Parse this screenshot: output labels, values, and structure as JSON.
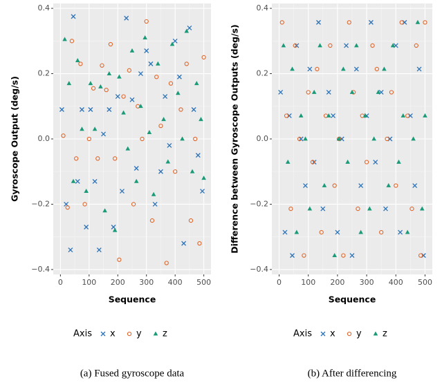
{
  "chart_data": [
    {
      "type": "scatter",
      "caption": "(a) Fused gyroscope data",
      "xlabel": "Sequence",
      "ylabel": "Gyroscope Output (deg/s)",
      "legend_title": "Axis",
      "legend": "bottom",
      "grid": true,
      "xlim": [
        -25,
        525
      ],
      "ylim": [
        -0.415,
        0.415
      ],
      "xticks": [
        0,
        100,
        200,
        300,
        400,
        500
      ],
      "yticks": [
        {
          "value": -0.4,
          "label": "−0.4"
        },
        {
          "value": -0.2,
          "label": "−0.2"
        },
        {
          "value": 0,
          "label": "0.0"
        },
        0.2,
        0.4
      ],
      "series": [
        {
          "name": "x",
          "color": "#2a72b8",
          "marker": "cross",
          "x": [
            5,
            20,
            35,
            45,
            60,
            75,
            90,
            105,
            120,
            135,
            150,
            170,
            185,
            200,
            215,
            230,
            250,
            265,
            280,
            300,
            315,
            330,
            350,
            365,
            380,
            400,
            415,
            430,
            450,
            465,
            480,
            495
          ],
          "values": [
            0.09,
            -0.2,
            -0.34,
            0.375,
            -0.13,
            0.09,
            -0.27,
            0.09,
            -0.13,
            -0.34,
            0.015,
            0.09,
            -0.27,
            0.13,
            -0.16,
            0.37,
            0.12,
            -0.09,
            0.2,
            0.27,
            0.23,
            -0.2,
            -0.1,
            0.13,
            -0.02,
            0.3,
            0.19,
            -0.32,
            0.34,
            0.09,
            -0.05,
            -0.16
          ]
        },
        {
          "name": "y",
          "color": "#e0662a",
          "marker": "circle",
          "x": [
            10,
            25,
            40,
            55,
            70,
            85,
            100,
            115,
            130,
            145,
            160,
            175,
            190,
            205,
            220,
            240,
            255,
            270,
            285,
            300,
            320,
            335,
            350,
            370,
            385,
            400,
            420,
            440,
            455,
            470,
            485,
            500
          ],
          "values": [
            0.01,
            -0.21,
            0.3,
            -0.06,
            0.23,
            -0.2,
            0.0,
            0.155,
            -0.06,
            0.225,
            0.15,
            0.29,
            -0.06,
            -0.37,
            0.13,
            0.21,
            -0.2,
            0.1,
            0.0,
            0.36,
            -0.25,
            0.19,
            0.04,
            -0.38,
            0.17,
            -0.1,
            0.09,
            0.23,
            -0.25,
            0.0,
            -0.32,
            0.25
          ]
        },
        {
          "name": "z",
          "color": "#1b9a78",
          "marker": "triangle",
          "x": [
            15,
            30,
            45,
            60,
            75,
            90,
            105,
            120,
            140,
            155,
            170,
            190,
            205,
            220,
            235,
            250,
            265,
            280,
            295,
            310,
            325,
            340,
            360,
            375,
            390,
            410,
            425,
            440,
            460,
            475,
            490,
            500
          ],
          "values": [
            0.305,
            0.17,
            -0.13,
            0.24,
            0.03,
            -0.16,
            0.17,
            0.03,
            0.16,
            -0.22,
            0.2,
            -0.28,
            0.19,
            0.08,
            -0.03,
            0.27,
            -0.13,
            0.1,
            0.31,
            0.02,
            -0.17,
            0.23,
            0.06,
            -0.07,
            0.29,
            0.14,
            0.0,
            0.33,
            -0.1,
            0.17,
            0.06,
            -0.12
          ]
        }
      ]
    },
    {
      "type": "scatter",
      "caption": "(b) After differencing",
      "xlabel": "Sequence",
      "ylabel": "Difference between Gyroscope Outputs (deg/s)",
      "legend_title": "Axis",
      "legend": "bottom",
      "grid": true,
      "xlim": [
        -25,
        525
      ],
      "ylim": [
        -0.415,
        0.415
      ],
      "xticks": [
        0,
        100,
        200,
        300,
        400,
        500
      ],
      "yticks": [
        {
          "value": -0.4,
          "label": "−0.4"
        },
        {
          "value": -0.2,
          "label": "−0.2"
        },
        {
          "value": 0,
          "label": "0.0"
        },
        0.2,
        0.4
      ],
      "series": [
        {
          "name": "x",
          "color": "#2a72b8",
          "marker": "cross",
          "x": [
            5,
            20,
            35,
            45,
            60,
            75,
            90,
            105,
            120,
            135,
            150,
            170,
            185,
            200,
            215,
            230,
            250,
            265,
            280,
            300,
            315,
            330,
            350,
            365,
            380,
            400,
            415,
            430,
            450,
            465,
            480,
            495
          ],
          "values": [
            0.143,
            -0.286,
            0.071,
            -0.357,
            0.286,
            0,
            -0.143,
            0.214,
            -0.071,
            0.357,
            -0.214,
            0.143,
            0.071,
            -0.286,
            0,
            0.286,
            -0.357,
            0.214,
            -0.143,
            0.071,
            0.357,
            -0.071,
            0.143,
            -0.214,
            0,
            0.286,
            -0.286,
            0.357,
            0.071,
            -0.143,
            0.214,
            -0.357
          ]
        },
        {
          "name": "y",
          "color": "#e0662a",
          "marker": "circle",
          "x": [
            10,
            25,
            40,
            55,
            70,
            85,
            100,
            115,
            130,
            145,
            160,
            175,
            190,
            205,
            220,
            240,
            255,
            270,
            285,
            300,
            320,
            335,
            350,
            370,
            385,
            400,
            420,
            440,
            455,
            470,
            485,
            500
          ],
          "values": [
            0.357,
            0.071,
            -0.214,
            0.286,
            0,
            -0.357,
            0.143,
            -0.071,
            0.214,
            -0.286,
            0.071,
            0.286,
            -0.143,
            0,
            -0.357,
            0.357,
            0.143,
            -0.214,
            0.071,
            -0.071,
            0.286,
            0.214,
            -0.286,
            0,
            0.143,
            -0.143,
            0.357,
            0.071,
            -0.214,
            0.286,
            -0.357,
            0.357
          ]
        },
        {
          "name": "z",
          "color": "#1b9a78",
          "marker": "triangle",
          "x": [
            15,
            30,
            45,
            60,
            75,
            90,
            105,
            120,
            140,
            155,
            170,
            190,
            205,
            220,
            235,
            250,
            265,
            280,
            295,
            310,
            325,
            340,
            360,
            375,
            390,
            410,
            425,
            440,
            460,
            475,
            490,
            500
          ],
          "values": [
            0.286,
            -0.071,
            0.214,
            -0.286,
            0.071,
            0,
            -0.214,
            0.143,
            0.286,
            -0.143,
            0.071,
            -0.357,
            0,
            0.214,
            -0.071,
            0.143,
            0.286,
            -0.286,
            0.071,
            -0.214,
            0,
            0.143,
            0.214,
            -0.143,
            0.286,
            -0.071,
            0.071,
            -0.286,
            0,
            0.357,
            -0.214,
            0.071
          ]
        }
      ]
    }
  ]
}
